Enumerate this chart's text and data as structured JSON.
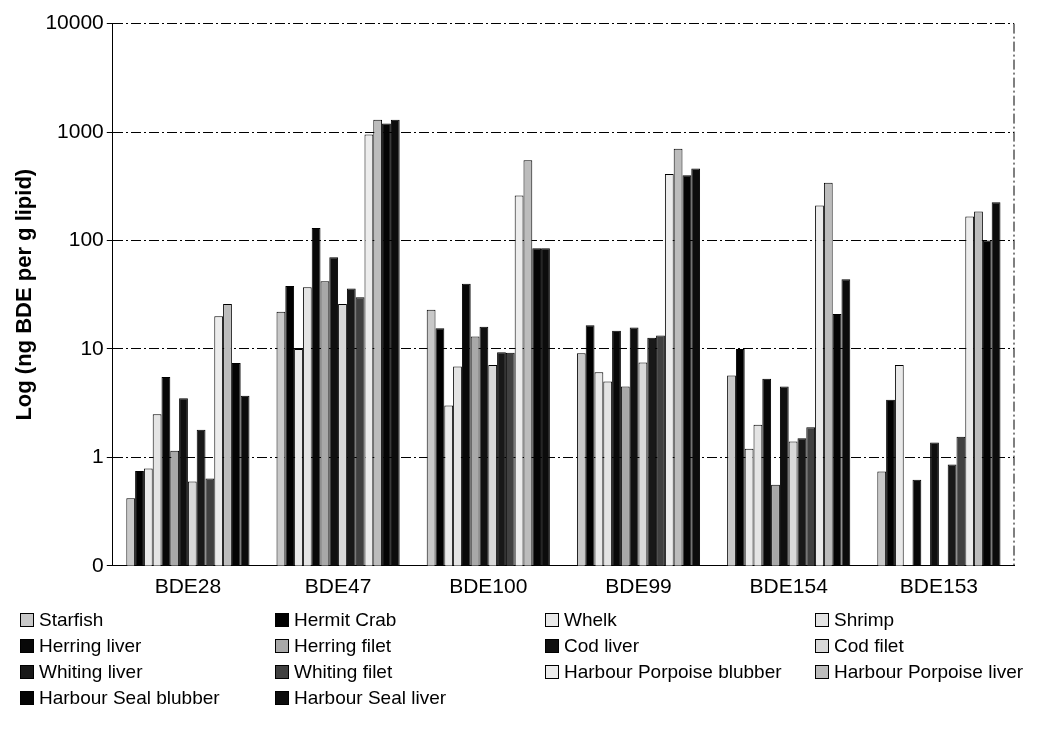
{
  "chart_data": {
    "type": "bar",
    "ylabel": "Log (ng BDE per g lipid)",
    "categories": [
      "BDE28",
      "BDE47",
      "BDE100",
      "BDE99",
      "BDE154",
      "BDE153"
    ],
    "log": true,
    "ylim": [
      0.1,
      10000
    ],
    "yticks": [
      {
        "value": 0.1,
        "label": "0"
      },
      1,
      10,
      100,
      1000,
      10000
    ],
    "grid": "y",
    "legend": "bottom",
    "series": [
      {
        "name": "Starfish",
        "color": "#c8c8c8",
        "values": [
          0.42,
          22,
          23,
          9.1,
          5.7,
          0.74
        ]
      },
      {
        "name": "Hermit Crab",
        "color": "#000000",
        "values": [
          0.75,
          38,
          15.5,
          16.5,
          10,
          3.4
        ]
      },
      {
        "name": "Whelk",
        "color": "#e9e9e9",
        "values": [
          0.79,
          10,
          3.0,
          6.1,
          1.2,
          7.1
        ]
      },
      {
        "name": "Shrimp",
        "color": "#e4e4e4",
        "values": [
          2.5,
          37,
          6.9,
          5.0,
          2.0,
          null
        ]
      },
      {
        "name": "Herring liver",
        "color": "#080808",
        "values": [
          5.5,
          130,
          40,
          14.7,
          5.3,
          0.62
        ]
      },
      {
        "name": "Herring filet",
        "color": "#a8a8a8",
        "values": [
          1.15,
          42,
          13,
          4.5,
          0.56,
          null
        ]
      },
      {
        "name": "Cod liver",
        "color": "#101010",
        "values": [
          3.5,
          70,
          16,
          15.8,
          4.5,
          1.37
        ]
      },
      {
        "name": "Cod filet",
        "color": "#d8d8d8",
        "values": [
          0.6,
          26,
          7.1,
          7.5,
          1.4,
          null
        ]
      },
      {
        "name": "Whiting liver",
        "color": "#181818",
        "values": [
          1.8,
          36,
          9.3,
          12.7,
          1.5,
          0.86
        ]
      },
      {
        "name": "Whiting filet",
        "color": "#404040",
        "values": [
          0.64,
          30,
          9.2,
          13.3,
          1.9,
          1.55
        ]
      },
      {
        "name": "Harbour Porpoise blubber",
        "color": "#ececec",
        "values": [
          20,
          950,
          260,
          410,
          210,
          166
        ]
      },
      {
        "name": "Harbour Porpoise liver",
        "color": "#bcbcbc",
        "values": [
          26,
          1300,
          550,
          700,
          340,
          185
        ]
      },
      {
        "name": "Harbour Seal blubber",
        "color": "#040404",
        "values": [
          7.4,
          1200,
          85,
          400,
          21,
          100
        ]
      },
      {
        "name": "Harbour Seal liver",
        "color": "#0c0c0c",
        "values": [
          3.7,
          1300,
          85,
          460,
          44,
          225
        ]
      }
    ]
  }
}
